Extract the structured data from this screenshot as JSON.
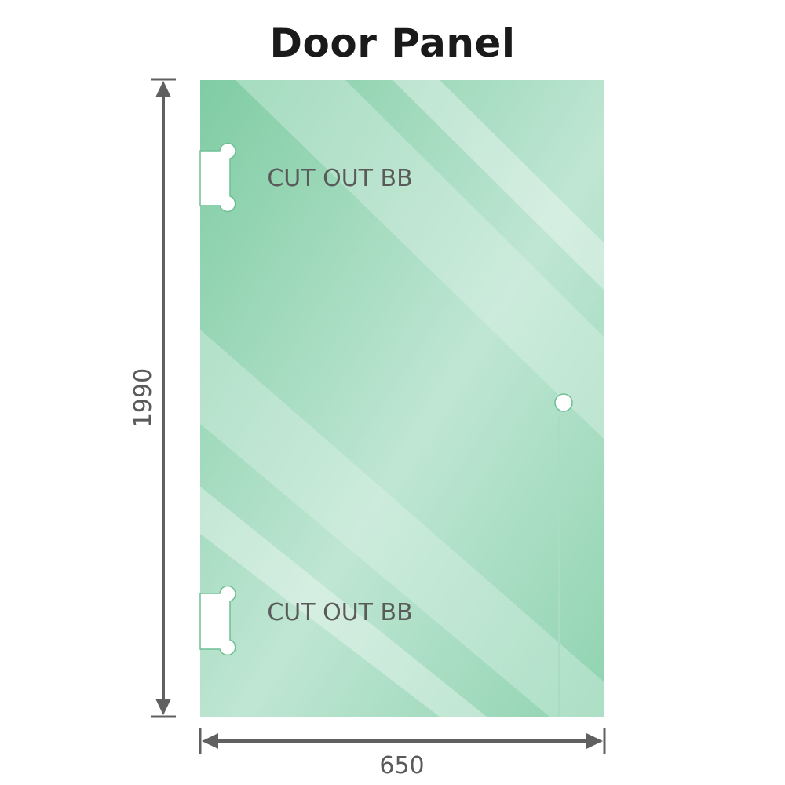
{
  "title": "Door Panel",
  "panel": {
    "glass_color": "#86cfa9",
    "glass_light_color": "#bfe6d2",
    "cutouts": [
      {
        "label": "CUT OUT BB"
      },
      {
        "label": "CUT OUT BB"
      }
    ],
    "handle_hole": true
  },
  "dimensions": {
    "height": "1990",
    "width": "650",
    "line_color": "#606060"
  }
}
